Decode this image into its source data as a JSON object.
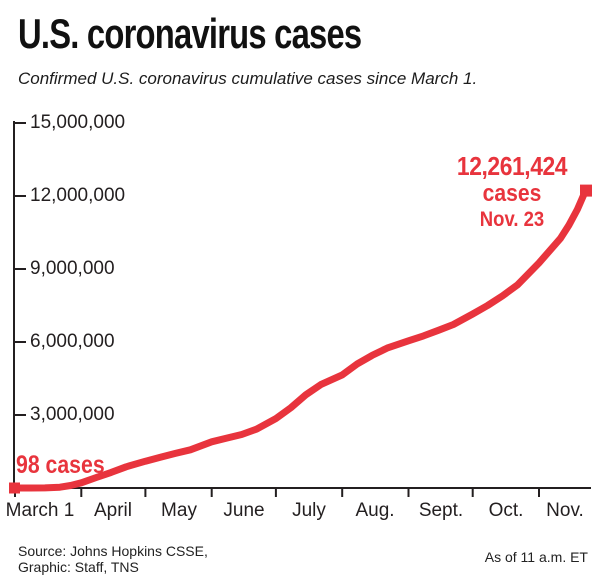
{
  "header": {
    "title": "U.S. coronavirus cases",
    "subtitle": "Confirmed U.S. coronavirus cumulative cases since March 1."
  },
  "annotations": {
    "start": {
      "label": "98 cases"
    },
    "latest": {
      "value": "12,261,424",
      "unit": "cases",
      "date": "Nov. 23"
    }
  },
  "footer": {
    "source_line1": "Source: Johns Hopkins CSSE,",
    "source_line2": "Graphic: Staff, TNS",
    "as_of": "As of 11 a.m. ET"
  },
  "chart_data": {
    "type": "line",
    "title": "U.S. coronavirus cases",
    "subtitle": "Confirmed U.S. coronavirus cumulative cases since March 1.",
    "xlabel": "",
    "ylabel": "",
    "grid": false,
    "legend_position": "none",
    "ylim": [
      0,
      15000000
    ],
    "ytick_values": [
      15000000,
      12000000,
      9000000,
      6000000,
      3000000
    ],
    "ytick_labels": [
      "15,000,000",
      "12,000,000",
      "9,000,000",
      "6,000,000",
      "3,000,000"
    ],
    "xtick_labels": [
      "March 1",
      "April",
      "May",
      "June",
      "July",
      "Aug.",
      "Sept.",
      "Oct.",
      "Nov."
    ],
    "x_unit": "days since March 1",
    "line_color": "#e8343d",
    "axis_color": "#231f20",
    "series_name": "Cumulative confirmed U.S. coronavirus cases",
    "start_annotation": {
      "date": "March 1",
      "cases": 98,
      "label": "98 cases"
    },
    "end_annotation": {
      "date": "Nov. 23",
      "cases": 12261424,
      "value_label": "12,261,424",
      "unit_label": "cases",
      "date_label": "Nov. 23"
    },
    "points": [
      {
        "day": 0,
        "cases": 98
      },
      {
        "day": 7,
        "cases": 600
      },
      {
        "day": 14,
        "cases": 3600
      },
      {
        "day": 21,
        "cases": 33000
      },
      {
        "day": 26,
        "cases": 104000
      },
      {
        "day": 31,
        "cases": 215000
      },
      {
        "day": 38,
        "cases": 430000
      },
      {
        "day": 45,
        "cases": 640000
      },
      {
        "day": 52,
        "cases": 870000
      },
      {
        "day": 61,
        "cases": 1103000
      },
      {
        "day": 68,
        "cases": 1260000
      },
      {
        "day": 75,
        "cases": 1420000
      },
      {
        "day": 82,
        "cases": 1570000
      },
      {
        "day": 92,
        "cases": 1900000
      },
      {
        "day": 99,
        "cases": 2050000
      },
      {
        "day": 106,
        "cases": 2200000
      },
      {
        "day": 113,
        "cases": 2420000
      },
      {
        "day": 122,
        "cases": 2850000
      },
      {
        "day": 129,
        "cases": 3300000
      },
      {
        "day": 136,
        "cases": 3830000
      },
      {
        "day": 143,
        "cases": 4250000
      },
      {
        "day": 153,
        "cases": 4650000
      },
      {
        "day": 160,
        "cases": 5100000
      },
      {
        "day": 167,
        "cases": 5450000
      },
      {
        "day": 174,
        "cases": 5750000
      },
      {
        "day": 184,
        "cases": 6050000
      },
      {
        "day": 191,
        "cases": 6250000
      },
      {
        "day": 198,
        "cases": 6480000
      },
      {
        "day": 205,
        "cases": 6720000
      },
      {
        "day": 214,
        "cases": 7150000
      },
      {
        "day": 221,
        "cases": 7500000
      },
      {
        "day": 228,
        "cases": 7900000
      },
      {
        "day": 235,
        "cases": 8350000
      },
      {
        "day": 245,
        "cases": 9250000
      },
      {
        "day": 250,
        "cases": 9750000
      },
      {
        "day": 255,
        "cases": 10250000
      },
      {
        "day": 259,
        "cases": 10800000
      },
      {
        "day": 263,
        "cases": 11450000
      },
      {
        "day": 267,
        "cases": 12261424
      }
    ]
  }
}
